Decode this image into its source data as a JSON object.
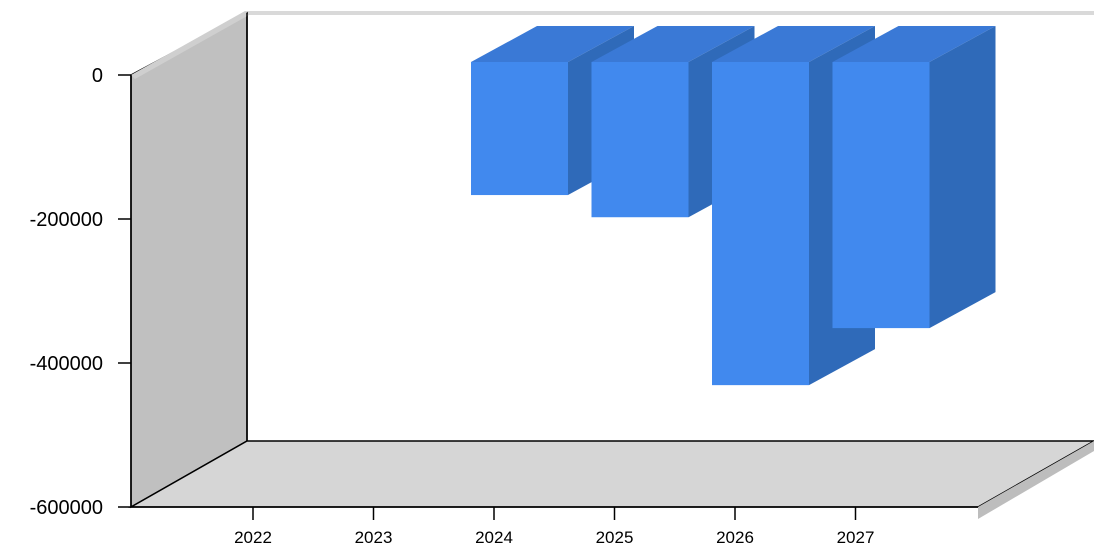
{
  "chart_data": {
    "type": "bar",
    "three_d": true,
    "categories": [
      "2022",
      "2023",
      "2024",
      "2025",
      "2026",
      "2027"
    ],
    "series": [
      {
        "values": [
          null,
          null,
          -210000,
          -245000,
          -510000,
          -420000
        ]
      }
    ],
    "ylim": [
      -600000,
      0
    ],
    "yticks": [
      0,
      -200000,
      -400000,
      -600000
    ],
    "ytick_labels": [
      "0",
      "-200000",
      "-400000",
      "-600000"
    ],
    "grid": false,
    "legend": "none",
    "colors": {
      "bar_front": "#4189EE",
      "bar_side": "#2F6AB9",
      "bar_top": "#3A79D6",
      "left_wall": "#C0C0C0",
      "floor": "#D6D6D6",
      "back_wall": "#FFFFFF",
      "wall_shadow": "#C8C8C8"
    }
  }
}
